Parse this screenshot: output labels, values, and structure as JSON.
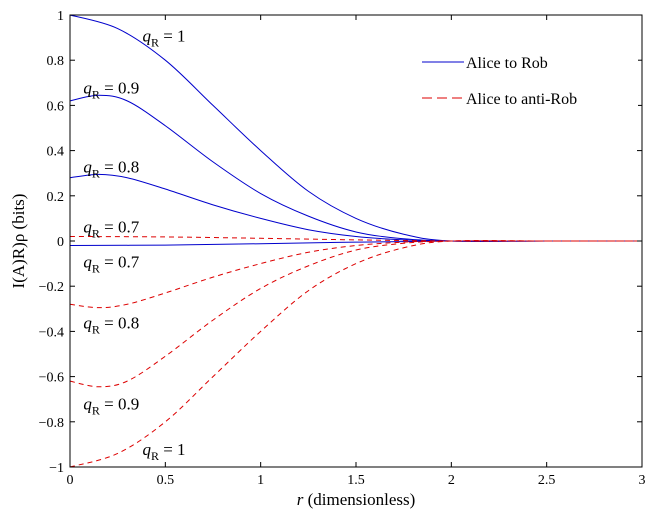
{
  "chart_data": {
    "type": "line",
    "xlabel_var": "r",
    "xlabel_rest": " (dimensionless)",
    "ylabel": "I(A)R)ρ (bits)",
    "xlim": [
      0,
      3
    ],
    "ylim": [
      -1,
      1
    ],
    "xticks": [
      0,
      0.5,
      1,
      1.5,
      2,
      2.5,
      3
    ],
    "xtick_labels": [
      "0",
      "0.5",
      "1",
      "1.5",
      "2",
      "2.5",
      "3"
    ],
    "yticks": [
      -1,
      -0.8,
      -0.6,
      -0.4,
      -0.2,
      0,
      0.2,
      0.4,
      0.6,
      0.8,
      1
    ],
    "ytick_labels": [
      "−1",
      "−0.8",
      "−0.6",
      "−0.4",
      "−0.2",
      "0",
      "0.2",
      "0.4",
      "0.6",
      "0.8",
      "1"
    ],
    "grid": false,
    "legend_position": "top-right",
    "legend": [
      {
        "label": "Alice to Rob",
        "color": "#0000cc",
        "dash": "solid"
      },
      {
        "label": "Alice to anti-Rob",
        "color": "#dd0000",
        "dash": "dashed"
      }
    ],
    "series": [
      {
        "group": "Alice to Rob",
        "q": "1",
        "x": [
          0,
          0.25,
          0.5,
          0.75,
          1,
          1.25,
          1.5,
          1.75,
          2,
          2.5,
          3
        ],
        "y": [
          1.0,
          0.94,
          0.8,
          0.6,
          0.4,
          0.22,
          0.1,
          0.03,
          0.0,
          0.0,
          0.0
        ]
      },
      {
        "group": "Alice to Rob",
        "q": "0.9",
        "x": [
          0,
          0.15,
          0.3,
          0.5,
          0.75,
          1,
          1.25,
          1.5,
          1.75,
          2,
          2.5,
          3
        ],
        "y": [
          0.62,
          0.645,
          0.62,
          0.51,
          0.35,
          0.21,
          0.11,
          0.04,
          0.01,
          0.0,
          0.0,
          0.0
        ]
      },
      {
        "group": "Alice to Rob",
        "q": "0.8",
        "x": [
          0,
          0.15,
          0.3,
          0.5,
          0.75,
          1,
          1.25,
          1.5,
          1.75,
          2,
          2.5,
          3
        ],
        "y": [
          0.28,
          0.295,
          0.28,
          0.23,
          0.16,
          0.1,
          0.05,
          0.02,
          0.005,
          0.0,
          0.0,
          0.0
        ]
      },
      {
        "group": "Alice to Rob",
        "q": "0.7",
        "x": [
          0,
          0.5,
          1,
          1.5,
          2,
          2.5,
          3
        ],
        "y": [
          -0.02,
          -0.018,
          -0.012,
          -0.005,
          0.0,
          0.0,
          0.0
        ]
      },
      {
        "group": "Alice to anti-Rob",
        "q": "0.7",
        "x": [
          0,
          0.5,
          1,
          1.5,
          2,
          2.5,
          3
        ],
        "y": [
          0.02,
          0.018,
          0.012,
          0.005,
          0.0,
          0.0,
          0.0
        ]
      },
      {
        "group": "Alice to anti-Rob",
        "q": "0.8",
        "x": [
          0,
          0.15,
          0.3,
          0.5,
          0.75,
          1,
          1.25,
          1.5,
          1.75,
          2,
          2.5,
          3
        ],
        "y": [
          -0.28,
          -0.295,
          -0.28,
          -0.23,
          -0.16,
          -0.1,
          -0.05,
          -0.02,
          -0.005,
          0.0,
          0.0,
          0.0
        ]
      },
      {
        "group": "Alice to anti-Rob",
        "q": "0.9",
        "x": [
          0,
          0.15,
          0.3,
          0.5,
          0.75,
          1,
          1.25,
          1.5,
          1.75,
          2,
          2.5,
          3
        ],
        "y": [
          -0.62,
          -0.645,
          -0.62,
          -0.51,
          -0.35,
          -0.21,
          -0.11,
          -0.04,
          -0.01,
          0.0,
          0.0,
          0.0
        ]
      },
      {
        "group": "Alice to anti-Rob",
        "q": "1",
        "x": [
          0,
          0.25,
          0.5,
          0.75,
          1,
          1.25,
          1.5,
          1.75,
          2,
          2.5,
          3
        ],
        "y": [
          -1.0,
          -0.94,
          -0.8,
          -0.6,
          -0.4,
          -0.22,
          -0.1,
          -0.03,
          0.0,
          0.0,
          0.0
        ]
      }
    ],
    "annotations": [
      {
        "prefix": "q",
        "sub": "R",
        "suffix": " = 1",
        "x": 0.38,
        "y": 0.91
      },
      {
        "prefix": "q",
        "sub": "R",
        "suffix": " = 0.9",
        "x": 0.07,
        "y": 0.68
      },
      {
        "prefix": "q",
        "sub": "R",
        "suffix": " = 0.8",
        "x": 0.07,
        "y": 0.33
      },
      {
        "prefix": "q",
        "sub": "R",
        "suffix": " = 0.7",
        "x": 0.07,
        "y": 0.065
      },
      {
        "prefix": "q",
        "sub": "R",
        "suffix": " = 0.7",
        "x": 0.07,
        "y": -0.09
      },
      {
        "prefix": "q",
        "sub": "R",
        "suffix": " = 0.8",
        "x": 0.07,
        "y": -0.36
      },
      {
        "prefix": "q",
        "sub": "R",
        "suffix": " = 0.9",
        "x": 0.07,
        "y": -0.72
      },
      {
        "prefix": "q",
        "sub": "R",
        "suffix": " = 1",
        "x": 0.38,
        "y": -0.92
      }
    ]
  }
}
